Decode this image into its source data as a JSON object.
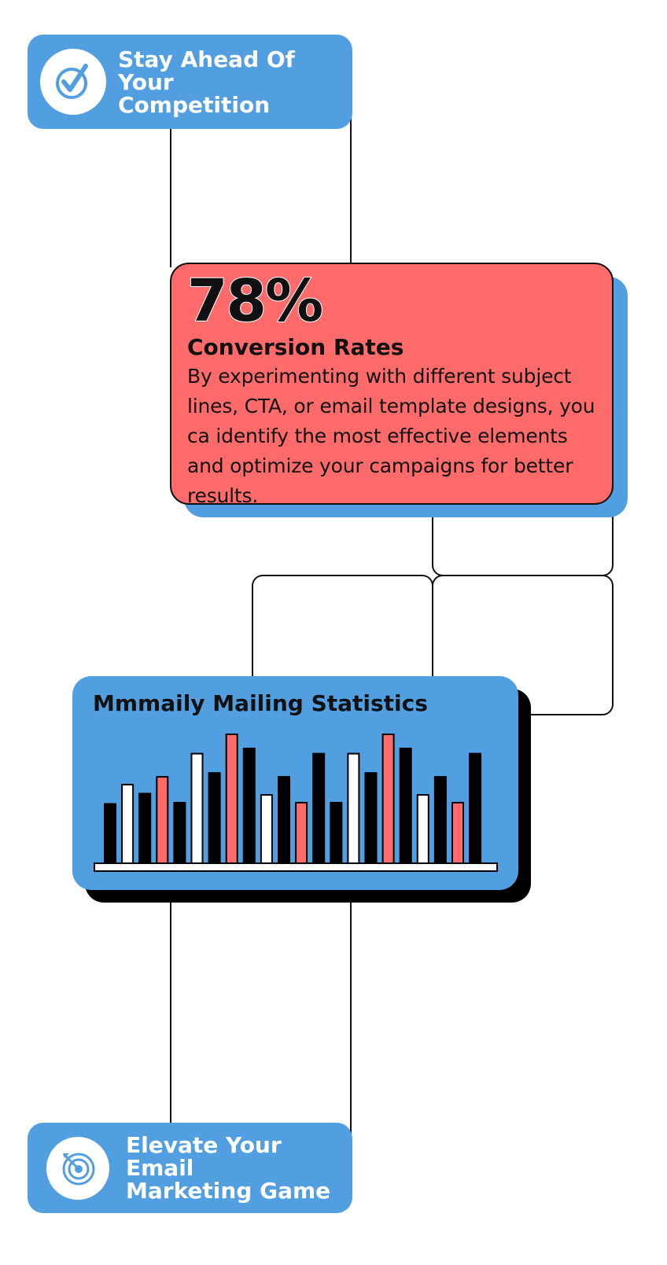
{
  "top_pill": {
    "title_line1": "Stay Ahead Of Your",
    "title_line2": "Competition",
    "icon": "check-circle-icon"
  },
  "stat_card": {
    "percentage": "78%",
    "title": "Conversion Rates",
    "body": "By experimenting with different subject lines, CTA, or email template designs, you ca identify the most effective elements and optimize your campaigns for better results."
  },
  "stats_card": {
    "title": "Mmmaily Mailing Statistics"
  },
  "bottom_pill": {
    "title_line1": "Elevate Your Email",
    "title_line2": "Marketing Game",
    "icon": "target-icon"
  },
  "colors": {
    "blue": "#519ee0",
    "red": "#ff6b6b",
    "black": "#000000",
    "white": "#ffffff"
  },
  "chart_data": {
    "type": "bar",
    "values": [
      0.46,
      0.61,
      0.54,
      0.67,
      0.47,
      0.85,
      0.7,
      1.0,
      0.89,
      0.53,
      0.67,
      0.47,
      0.85,
      0.47,
      0.85,
      0.7,
      1.0,
      0.89,
      0.53,
      0.67,
      0.47,
      0.85
    ],
    "colors": [
      "black",
      "white",
      "black",
      "red",
      "black",
      "white",
      "black",
      "red",
      "black",
      "white",
      "black",
      "red",
      "black",
      "black",
      "white",
      "black",
      "red",
      "black",
      "white",
      "black",
      "red",
      "black"
    ]
  }
}
